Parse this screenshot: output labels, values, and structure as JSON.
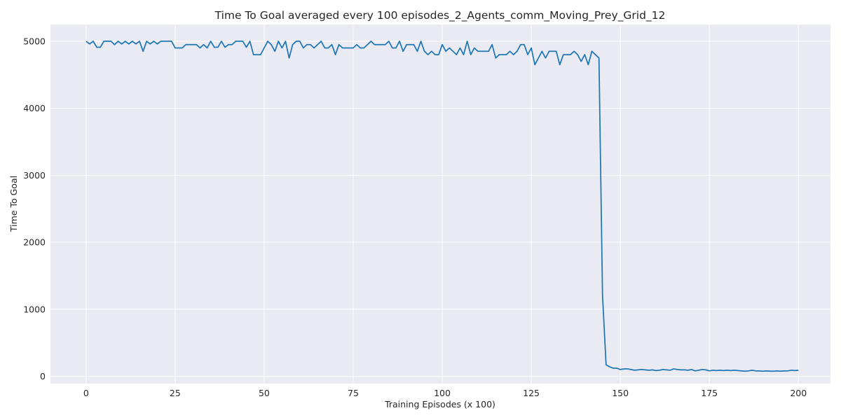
{
  "chart_data": {
    "type": "line",
    "title": "Time To Goal averaged every 100 episodes_2_Agents_comm_Moving_Prey_Grid_12",
    "xlabel": "Training Episodes (x 100)",
    "ylabel": "Time To Goal",
    "xlim": [
      -10,
      209
    ],
    "ylim": [
      -110,
      5250
    ],
    "xticks": [
      0,
      25,
      50,
      75,
      100,
      125,
      150,
      175,
      200
    ],
    "yticks": [
      0,
      1000,
      2000,
      3000,
      4000,
      5000
    ],
    "grid": true,
    "line_color": "#1f77b4",
    "background_color": "#eaeaf2",
    "series": [
      {
        "values": [
          5000,
          4960,
          5000,
          4910,
          4910,
          5000,
          5000,
          5000,
          4950,
          5000,
          4960,
          5000,
          4960,
          5000,
          4960,
          5000,
          4850,
          5000,
          4960,
          5000,
          4960,
          5000,
          5000,
          5000,
          5000,
          4900,
          4900,
          4900,
          4950,
          4950,
          4950,
          4950,
          4900,
          4950,
          4900,
          5000,
          4910,
          4910,
          5000,
          4910,
          4950,
          4950,
          5000,
          5000,
          5000,
          4910,
          5000,
          4800,
          4800,
          4800,
          4900,
          5000,
          4950,
          4850,
          5000,
          4900,
          5000,
          4750,
          4950,
          5000,
          5000,
          4900,
          4950,
          4950,
          4900,
          4950,
          5000,
          4900,
          4900,
          4950,
          4800,
          4950,
          4900,
          4900,
          4900,
          4900,
          4950,
          4900,
          4900,
          4950,
          5000,
          4950,
          4950,
          4950,
          4950,
          5000,
          4900,
          4900,
          5000,
          4850,
          4950,
          4950,
          4950,
          4850,
          5000,
          4850,
          4800,
          4850,
          4800,
          4800,
          4950,
          4850,
          4900,
          4850,
          4800,
          4900,
          4800,
          5000,
          4800,
          4900,
          4850,
          4850,
          4850,
          4850,
          4950,
          4750,
          4800,
          4800,
          4800,
          4850,
          4800,
          4850,
          4950,
          4950,
          4800,
          4900,
          4650,
          4750,
          4850,
          4750,
          4850,
          4850,
          4850,
          4650,
          4800,
          4800,
          4800,
          4850,
          4800,
          4700,
          4800,
          4650,
          4850,
          4800,
          4750,
          1200,
          170,
          140,
          120,
          120,
          100,
          110,
          110,
          100,
          90,
          95,
          100,
          95,
          90,
          95,
          85,
          90,
          100,
          95,
          90,
          110,
          100,
          95,
          95,
          90,
          100,
          80,
          90,
          100,
          95,
          80,
          90,
          85,
          90,
          85,
          90,
          85,
          90,
          85,
          80,
          75,
          80,
          90,
          80,
          80,
          75,
          80,
          75,
          75,
          80,
          75,
          80,
          80,
          90,
          85,
          90
        ]
      }
    ]
  }
}
